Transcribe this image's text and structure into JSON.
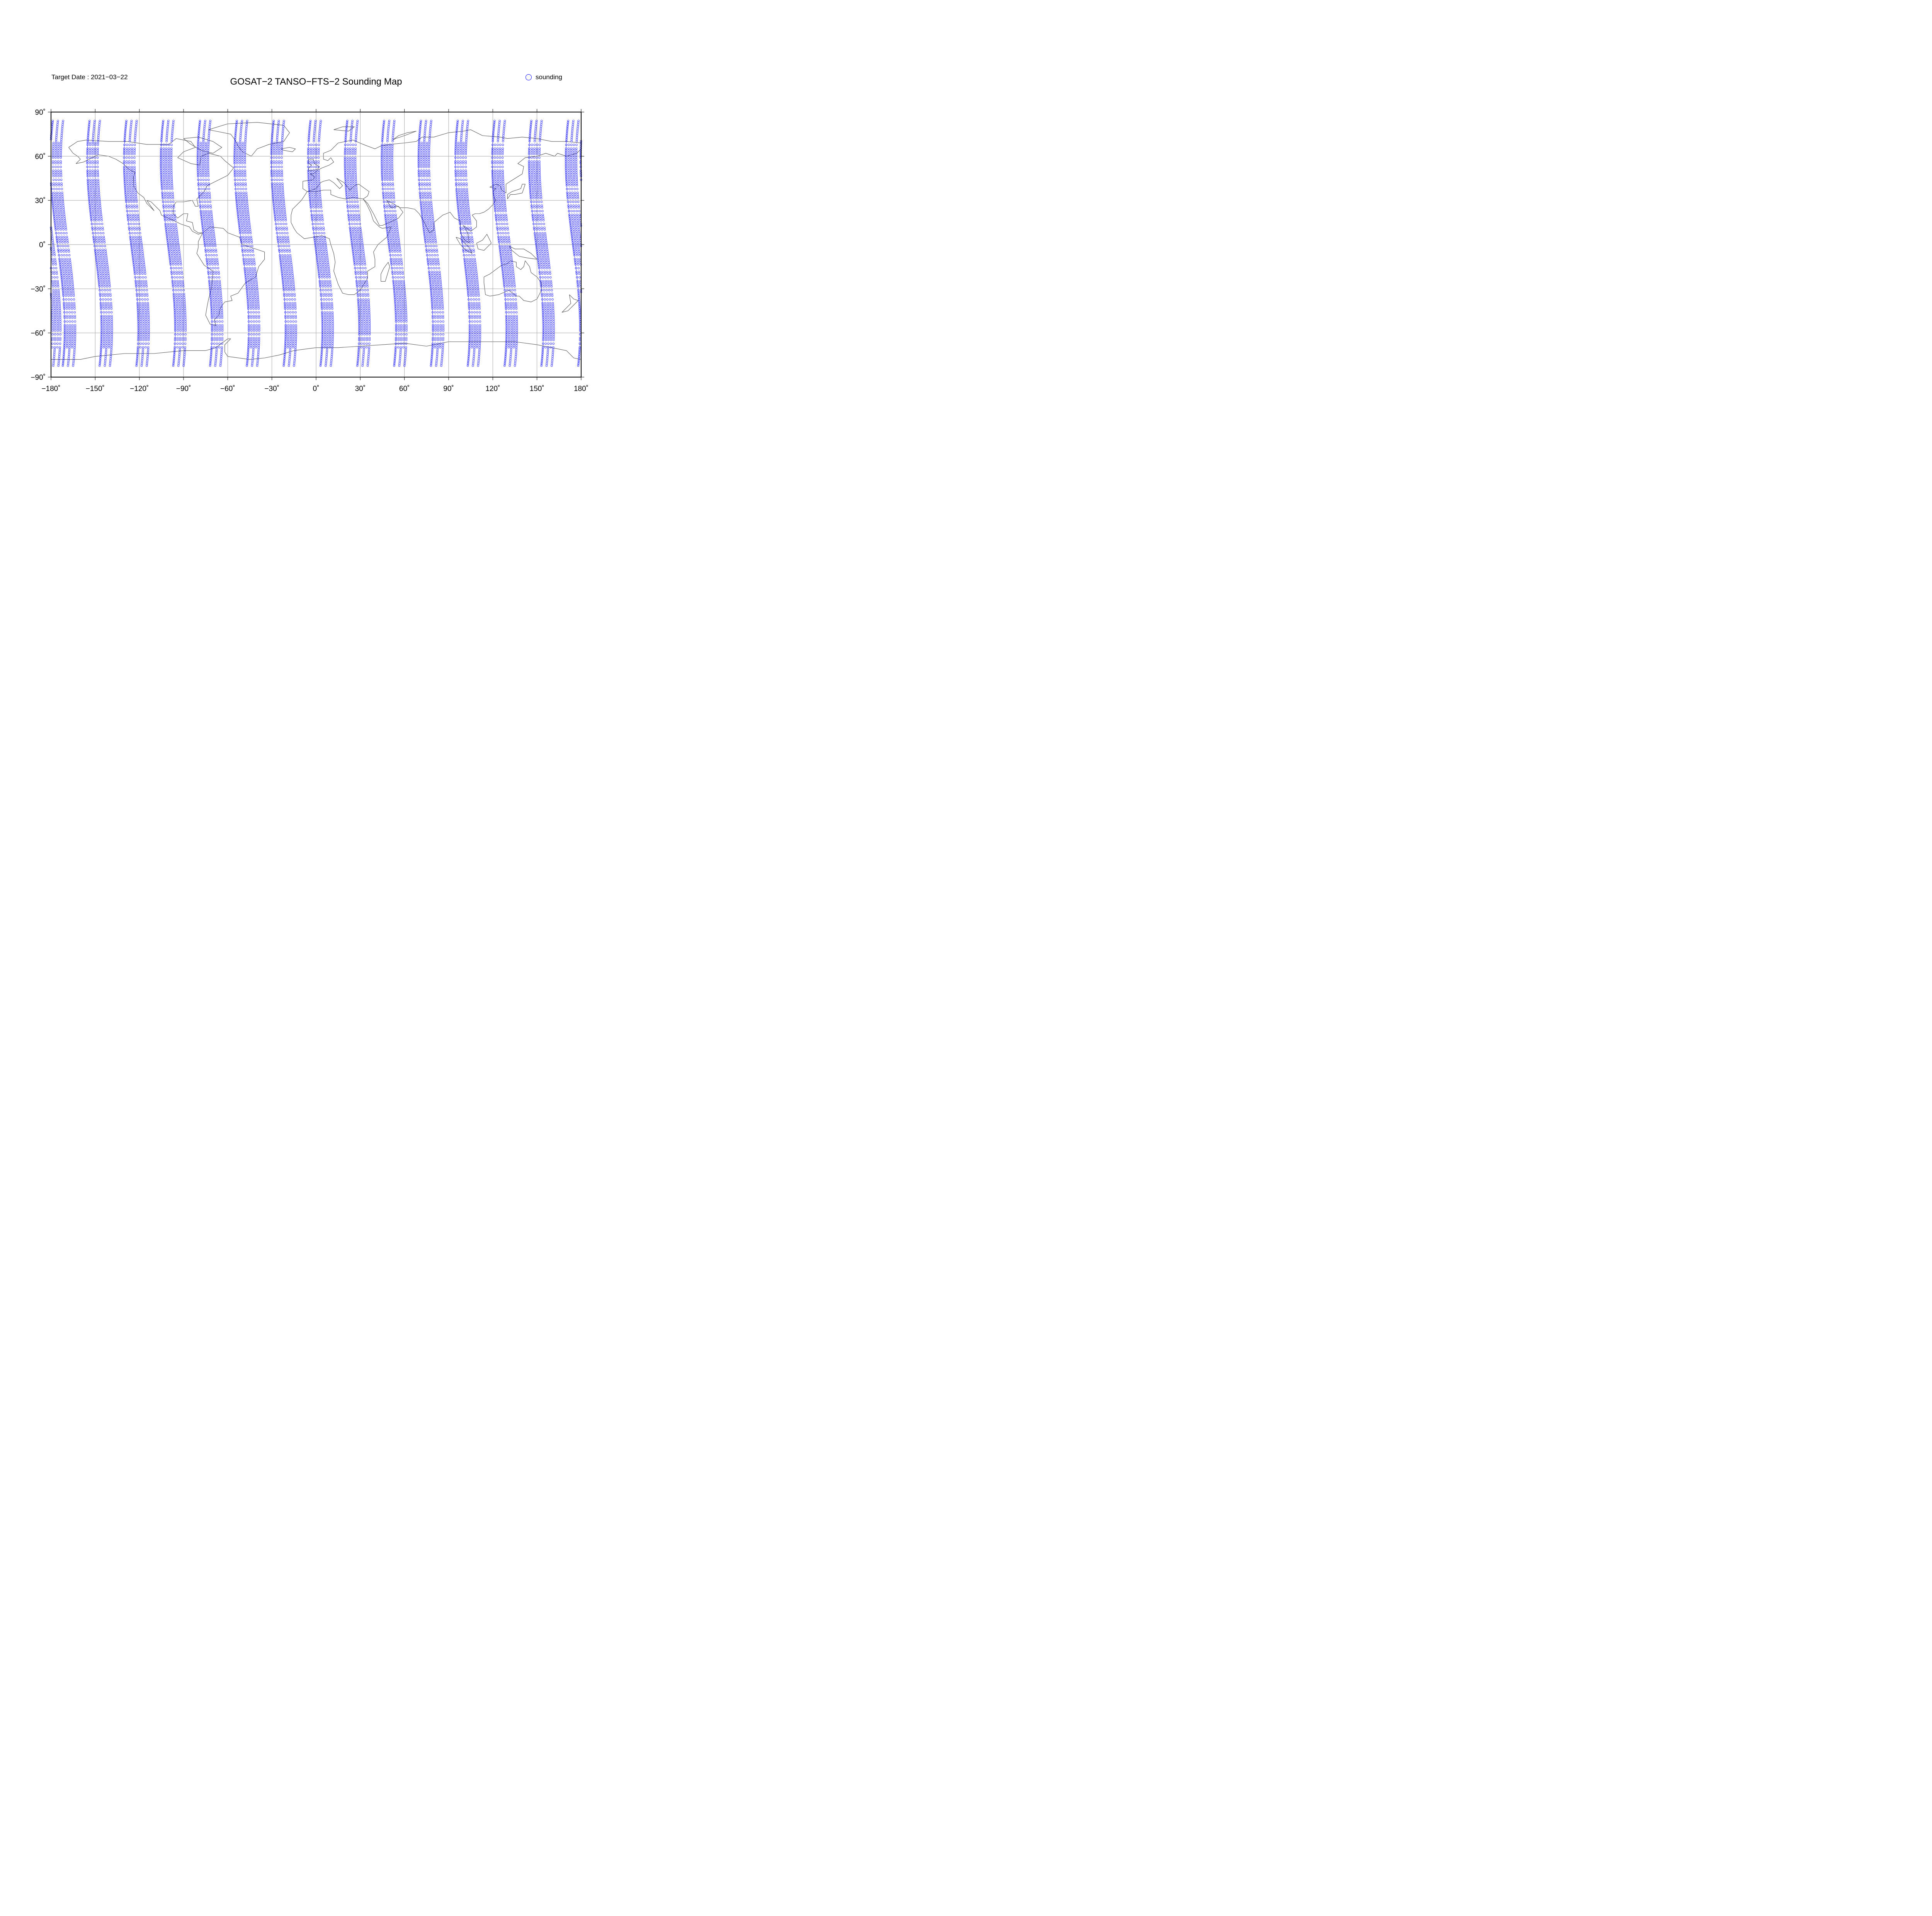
{
  "header": {
    "title": "GOSAT−2 TANSO−FTS−2 Sounding Map",
    "target_date_label": "Target Date : 2021−03−22"
  },
  "legend": {
    "label": "sounding",
    "symbol_color": "#0000ff"
  },
  "colors": {
    "sounding": "#0000ff",
    "coastline": "#555555",
    "grid": "#999999",
    "frame": "#000000"
  },
  "map": {
    "projection": "equirectangular",
    "lon_range": [
      -180,
      180
    ],
    "lat_range": [
      -90,
      90
    ],
    "grid": true,
    "lon_ticks": [
      {
        "value": -180,
        "label": "−180˚"
      },
      {
        "value": -150,
        "label": "−150˚"
      },
      {
        "value": -120,
        "label": "−120˚"
      },
      {
        "value": -90,
        "label": "−90˚"
      },
      {
        "value": -60,
        "label": "−60˚"
      },
      {
        "value": -30,
        "label": "−30˚"
      },
      {
        "value": 0,
        "label": "0˚"
      },
      {
        "value": 30,
        "label": "30˚"
      },
      {
        "value": 60,
        "label": "60˚"
      },
      {
        "value": 90,
        "label": "90˚"
      },
      {
        "value": 120,
        "label": "120˚"
      },
      {
        "value": 150,
        "label": "150˚"
      },
      {
        "value": 180,
        "label": "180˚"
      }
    ],
    "lat_ticks": [
      {
        "value": 90,
        "label": "90˚"
      },
      {
        "value": 60,
        "label": "60˚"
      },
      {
        "value": 30,
        "label": "30˚"
      },
      {
        "value": 0,
        "label": "0˚"
      },
      {
        "value": -30,
        "label": "−30˚"
      },
      {
        "value": -60,
        "label": "−60˚"
      },
      {
        "value": -90,
        "label": "−90˚"
      }
    ],
    "orbit_tracks": {
      "description_free": true,
      "equator_crossing_lons": [
        -172,
        -147,
        -122,
        -97,
        -72,
        -47,
        -22,
        3,
        28,
        53,
        78,
        103,
        128,
        153,
        178
      ],
      "lat_extent": [
        -83,
        84
      ],
      "swath_half_width_deg": 3.5
    }
  }
}
